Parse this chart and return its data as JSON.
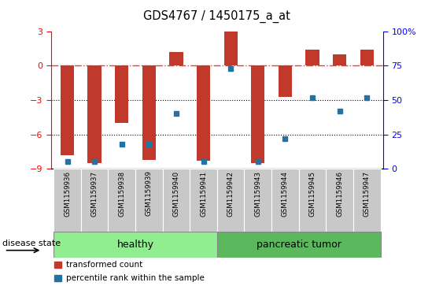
{
  "title": "GDS4767 / 1450175_a_at",
  "samples": [
    "GSM1159936",
    "GSM1159937",
    "GSM1159938",
    "GSM1159939",
    "GSM1159940",
    "GSM1159941",
    "GSM1159942",
    "GSM1159943",
    "GSM1159944",
    "GSM1159945",
    "GSM1159946",
    "GSM1159947"
  ],
  "bar_values": [
    -7.8,
    -8.5,
    -5.0,
    -8.2,
    1.2,
    -8.3,
    3.0,
    -8.5,
    -2.7,
    1.4,
    1.0,
    1.4
  ],
  "blue_values": [
    5,
    5,
    18,
    18,
    40,
    5,
    73,
    5,
    22,
    52,
    42,
    52
  ],
  "bar_color": "#c0392b",
  "blue_color": "#2471a3",
  "ylim_left": [
    -9,
    3
  ],
  "ylim_right": [
    0,
    100
  ],
  "yticks_left": [
    -9,
    -6,
    -3,
    0,
    3
  ],
  "yticks_right": [
    0,
    25,
    50,
    75,
    100
  ],
  "ytick_labels_right": [
    "0",
    "25",
    "50",
    "75",
    "100%"
  ],
  "dotted_lines": [
    -3,
    -6
  ],
  "healthy_count": 6,
  "tumor_count": 6,
  "group_labels": [
    "healthy",
    "pancreatic tumor"
  ],
  "group_color_healthy": "#90ee90",
  "group_color_tumor": "#5cb85c",
  "legend_bar_label": "transformed count",
  "legend_dot_label": "percentile rank within the sample",
  "disease_state_label": "disease state",
  "bar_width": 0.5,
  "cell_color": "#c8c8c8",
  "cell_border_color": "#ffffff",
  "fig_bg": "#ffffff"
}
